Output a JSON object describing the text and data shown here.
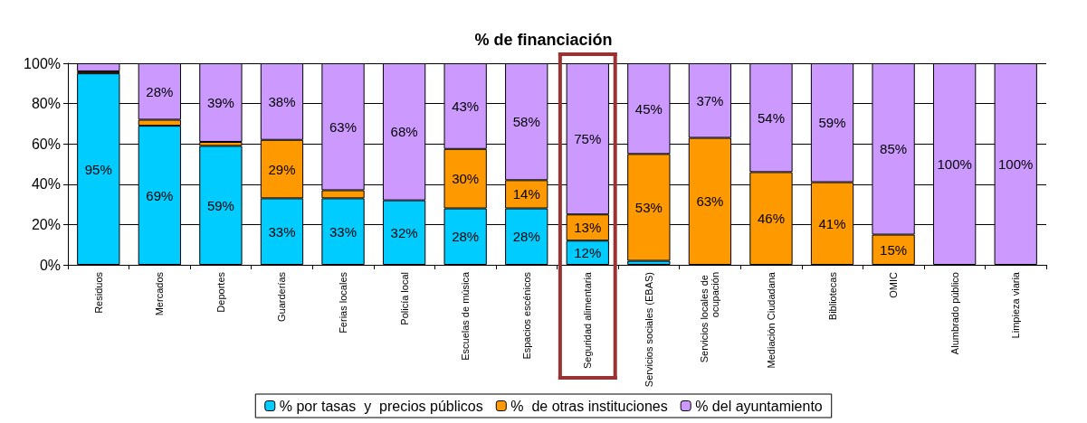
{
  "chart_data": {
    "type": "bar",
    "title": "% de financiación",
    "stacked": true,
    "categories": [
      "Residuos",
      "Mercados",
      "Deportes",
      "Guarderías",
      "Ferias locales",
      "Policía local",
      "Escuelas de música",
      "Espacios escénicos",
      "Seguridad alimentaria",
      "Servicios sociales (EBAS)",
      "Servicios locales de ocupación",
      "Mediación Ciudadana",
      "Bibliotecas",
      "OMIC",
      "Alumbrado público",
      "Limpieza viaria"
    ],
    "series": [
      {
        "name": "% por tasas  y  precios públicos",
        "color": "#00ccff",
        "values": [
          95,
          69,
          59,
          33,
          33,
          32,
          28,
          28,
          12,
          2,
          null,
          null,
          null,
          null,
          null,
          null
        ],
        "value_labels": [
          "95%",
          "69%",
          "59%",
          "33%",
          "33%",
          "32%",
          "28%",
          "28%",
          "12%",
          null,
          null,
          null,
          null,
          null,
          null,
          null
        ]
      },
      {
        "name": "%  de otras instituciones",
        "color": "#ff9900",
        "values": [
          1,
          3,
          2,
          29,
          4,
          null,
          29.5,
          14,
          13,
          53,
          63,
          46,
          41,
          15,
          null,
          null
        ],
        "value_labels": [
          null,
          null,
          null,
          "29%",
          null,
          null,
          "30%",
          "14%",
          "13%",
          "53%",
          "63%",
          "46%",
          "41%",
          "15%",
          null,
          null
        ]
      },
      {
        "name": "% del ayuntamiento",
        "color": "#cc99ff",
        "values": [
          4,
          28,
          39,
          38,
          63,
          68,
          42.5,
          58,
          75,
          45,
          37,
          54,
          59,
          85,
          100,
          100
        ],
        "value_labels": [
          null,
          "28%",
          "39%",
          "38%",
          "63%",
          "68%",
          "43%",
          "58%",
          "75%",
          "45%",
          "37%",
          "54%",
          "59%",
          "85%",
          "100%",
          "100%"
        ]
      }
    ],
    "ylim": [
      0,
      100
    ],
    "yticks": [
      {
        "value": 0,
        "label": "0%"
      },
      {
        "value": 20,
        "label": "20%"
      },
      {
        "value": 40,
        "label": "40%"
      },
      {
        "value": 60,
        "label": "60%"
      },
      {
        "value": 80,
        "label": "80%"
      },
      {
        "value": 100,
        "label": "100%"
      }
    ],
    "grid": "y",
    "legend": "bottom"
  }
}
